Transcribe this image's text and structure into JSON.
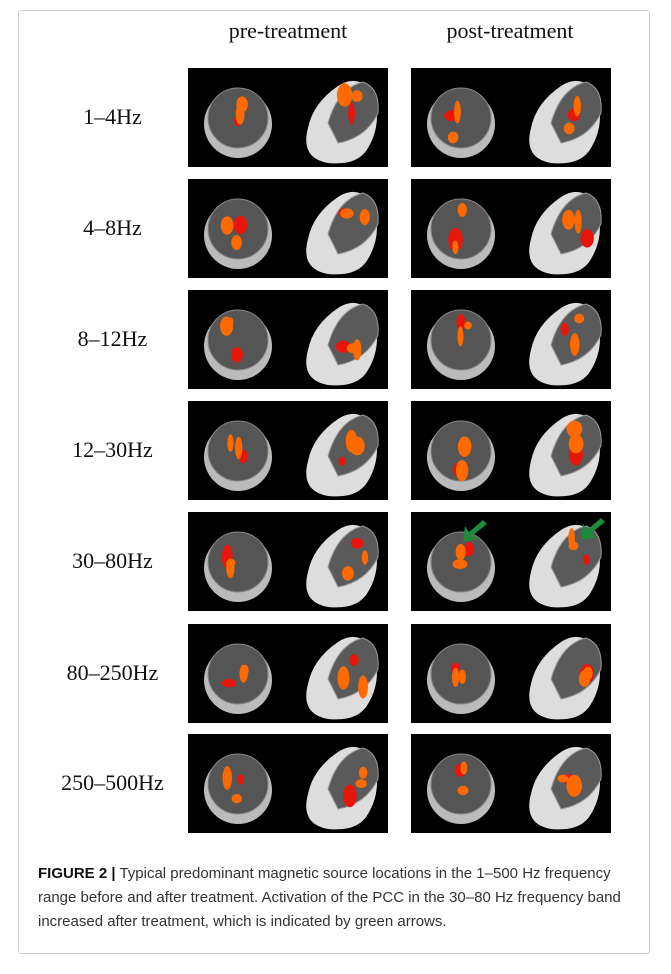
{
  "figure": {
    "columns": [
      "pre-treatment",
      "post-treatment"
    ],
    "rows": [
      "1–4Hz",
      "4–8Hz",
      "8–12Hz",
      "12–30Hz",
      "30–80Hz",
      "80–250Hz",
      "250–500Hz"
    ]
  },
  "caption": {
    "label": "FIGURE 2 |",
    "text": "Typical predominant magnetic source locations in the 1–500 Hz frequency range before and after treatment. Activation of the PCC in the 30–80 Hz frequency band increased after treatment, which is indicated by green arrows."
  }
}
